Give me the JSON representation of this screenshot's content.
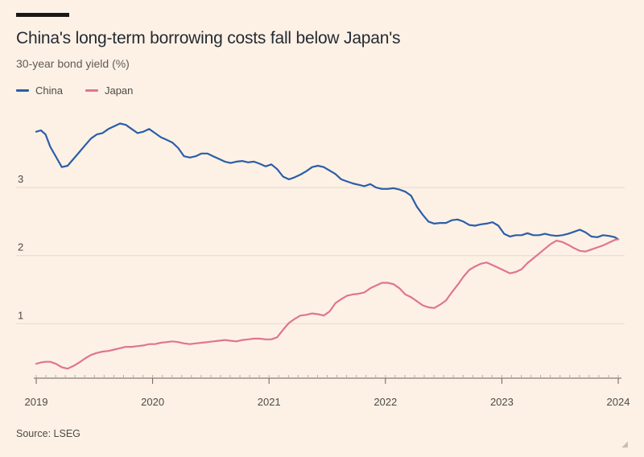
{
  "header": {
    "title": "China's long-term borrowing costs fall below Japan's",
    "subtitle": "30-year bond yield (%)"
  },
  "footer": {
    "source": "Source: LSEG",
    "corner_mark": "◢"
  },
  "colors": {
    "background": "#fdf1e5",
    "china": "#2b5ea7",
    "japan": "#e0758f",
    "grid": "#e6d9cc",
    "axis": "#66605c"
  },
  "chart_data": {
    "type": "line",
    "title": "China's long-term borrowing costs fall below Japan's",
    "ylabel": "30-year bond yield (%)",
    "xlabel": "",
    "xlim": [
      2019.0,
      2024.0
    ],
    "ylim": [
      0.2,
      4.1
    ],
    "y_ticks": [
      1,
      2,
      3
    ],
    "x_ticks": [
      "2019",
      "2020",
      "2021",
      "2022",
      "2023",
      "2024"
    ],
    "grid": true,
    "legend_position": "top-left",
    "series": [
      {
        "name": "China",
        "color": "#2b5ea7",
        "x": [
          2019.0,
          2019.04,
          2019.08,
          2019.12,
          2019.17,
          2019.22,
          2019.27,
          2019.32,
          2019.37,
          2019.42,
          2019.47,
          2019.52,
          2019.57,
          2019.62,
          2019.67,
          2019.72,
          2019.77,
          2019.82,
          2019.87,
          2019.92,
          2019.97,
          2020.02,
          2020.07,
          2020.12,
          2020.17,
          2020.22,
          2020.27,
          2020.32,
          2020.37,
          2020.42,
          2020.47,
          2020.52,
          2020.57,
          2020.62,
          2020.67,
          2020.72,
          2020.77,
          2020.82,
          2020.87,
          2020.92,
          2020.97,
          2021.02,
          2021.07,
          2021.12,
          2021.17,
          2021.22,
          2021.27,
          2021.32,
          2021.37,
          2021.42,
          2021.47,
          2021.52,
          2021.57,
          2021.62,
          2021.67,
          2021.72,
          2021.77,
          2021.82,
          2021.87,
          2021.92,
          2021.97,
          2022.02,
          2022.07,
          2022.12,
          2022.17,
          2022.22,
          2022.27,
          2022.32,
          2022.37,
          2022.42,
          2022.47,
          2022.52,
          2022.57,
          2022.62,
          2022.67,
          2022.72,
          2022.77,
          2022.82,
          2022.87,
          2022.92,
          2022.97,
          2023.02,
          2023.07,
          2023.12,
          2023.17,
          2023.22,
          2023.27,
          2023.32,
          2023.37,
          2023.42,
          2023.47,
          2023.52,
          2023.57,
          2023.62,
          2023.67,
          2023.72,
          2023.77,
          2023.82,
          2023.87,
          2023.92,
          2023.97,
          2024.0
        ],
        "values": [
          3.82,
          3.84,
          3.78,
          3.6,
          3.45,
          3.3,
          3.32,
          3.42,
          3.52,
          3.62,
          3.72,
          3.78,
          3.8,
          3.86,
          3.9,
          3.94,
          3.92,
          3.86,
          3.8,
          3.82,
          3.86,
          3.8,
          3.74,
          3.7,
          3.66,
          3.58,
          3.46,
          3.44,
          3.46,
          3.5,
          3.5,
          3.46,
          3.42,
          3.38,
          3.36,
          3.38,
          3.39,
          3.37,
          3.38,
          3.35,
          3.31,
          3.34,
          3.27,
          3.16,
          3.12,
          3.15,
          3.19,
          3.24,
          3.3,
          3.32,
          3.3,
          3.25,
          3.2,
          3.12,
          3.09,
          3.06,
          3.04,
          3.02,
          3.05,
          3.0,
          2.98,
          2.98,
          2.99,
          2.97,
          2.94,
          2.88,
          2.72,
          2.6,
          2.5,
          2.47,
          2.48,
          2.48,
          2.52,
          2.53,
          2.5,
          2.45,
          2.44,
          2.46,
          2.47,
          2.49,
          2.44,
          2.32,
          2.28,
          2.3,
          2.3,
          2.33,
          2.3,
          2.3,
          2.32,
          2.3,
          2.29,
          2.3,
          2.32,
          2.35,
          2.38,
          2.34,
          2.28,
          2.27,
          2.3,
          2.29,
          2.27,
          2.24
        ]
      },
      {
        "name": "Japan",
        "color": "#e0758f",
        "x": [
          2019.0,
          2019.04,
          2019.08,
          2019.12,
          2019.17,
          2019.22,
          2019.27,
          2019.32,
          2019.37,
          2019.42,
          2019.47,
          2019.52,
          2019.57,
          2019.62,
          2019.67,
          2019.72,
          2019.77,
          2019.82,
          2019.87,
          2019.92,
          2019.97,
          2020.02,
          2020.07,
          2020.12,
          2020.17,
          2020.22,
          2020.27,
          2020.32,
          2020.37,
          2020.42,
          2020.47,
          2020.52,
          2020.57,
          2020.62,
          2020.67,
          2020.72,
          2020.77,
          2020.82,
          2020.87,
          2020.92,
          2020.97,
          2021.02,
          2021.07,
          2021.12,
          2021.17,
          2021.22,
          2021.27,
          2021.32,
          2021.37,
          2021.42,
          2021.47,
          2021.52,
          2021.57,
          2021.62,
          2021.67,
          2021.72,
          2021.77,
          2021.82,
          2021.87,
          2021.92,
          2021.97,
          2022.02,
          2022.07,
          2022.12,
          2022.17,
          2022.22,
          2022.27,
          2022.32,
          2022.37,
          2022.42,
          2022.47,
          2022.52,
          2022.57,
          2022.62,
          2022.67,
          2022.72,
          2022.77,
          2022.82,
          2022.87,
          2022.92,
          2022.97,
          2023.02,
          2023.07,
          2023.12,
          2023.17,
          2023.22,
          2023.27,
          2023.32,
          2023.37,
          2023.42,
          2023.47,
          2023.52,
          2023.57,
          2023.62,
          2023.67,
          2023.72,
          2023.77,
          2023.82,
          2023.87,
          2023.92,
          2023.97,
          2024.0
        ],
        "values": [
          0.41,
          0.43,
          0.44,
          0.44,
          0.41,
          0.36,
          0.34,
          0.38,
          0.43,
          0.49,
          0.54,
          0.57,
          0.59,
          0.6,
          0.62,
          0.64,
          0.66,
          0.66,
          0.67,
          0.68,
          0.7,
          0.7,
          0.72,
          0.73,
          0.74,
          0.73,
          0.71,
          0.7,
          0.71,
          0.72,
          0.73,
          0.74,
          0.75,
          0.76,
          0.75,
          0.74,
          0.76,
          0.77,
          0.78,
          0.78,
          0.77,
          0.77,
          0.8,
          0.91,
          1.01,
          1.07,
          1.12,
          1.13,
          1.15,
          1.14,
          1.12,
          1.18,
          1.3,
          1.36,
          1.41,
          1.43,
          1.44,
          1.46,
          1.52,
          1.56,
          1.6,
          1.6,
          1.58,
          1.52,
          1.43,
          1.39,
          1.33,
          1.27,
          1.24,
          1.23,
          1.28,
          1.34,
          1.46,
          1.57,
          1.69,
          1.79,
          1.84,
          1.88,
          1.9,
          1.86,
          1.82,
          1.78,
          1.74,
          1.76,
          1.8,
          1.89,
          1.96,
          2.03,
          2.1,
          2.17,
          2.22,
          2.2,
          2.16,
          2.11,
          2.07,
          2.06,
          2.09,
          2.12,
          2.15,
          2.19,
          2.23,
          2.24
        ]
      }
    ]
  }
}
